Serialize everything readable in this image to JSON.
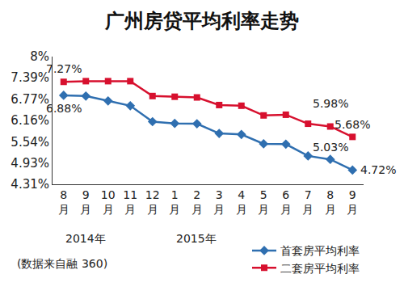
{
  "chart_data": {
    "type": "line",
    "title": "广州房贷平均利率走势",
    "categories": [
      "8月",
      "9月",
      "10月",
      "11月",
      "12月",
      "1月",
      "2月",
      "3月",
      "4月",
      "5月",
      "6月",
      "7月",
      "8月",
      "9月"
    ],
    "series": [
      {
        "name": "首套房平均利率",
        "color": "#2f6fb0",
        "marker": "diamond",
        "values": [
          6.88,
          6.86,
          6.72,
          6.58,
          6.12,
          6.07,
          6.06,
          5.78,
          5.75,
          5.48,
          5.47,
          5.13,
          5.03,
          4.72
        ],
        "value_labels": [
          "6.88%",
          null,
          null,
          null,
          null,
          null,
          null,
          null,
          null,
          null,
          null,
          null,
          "5.03%",
          "4.72%"
        ]
      },
      {
        "name": "二套房平均利率",
        "color": "#d7102e",
        "marker": "square",
        "values": [
          7.27,
          7.29,
          7.29,
          7.29,
          6.86,
          6.84,
          6.82,
          6.6,
          6.58,
          6.3,
          6.32,
          6.06,
          5.98,
          5.68
        ],
        "value_labels": [
          "7.27%",
          null,
          null,
          null,
          null,
          null,
          null,
          null,
          null,
          null,
          null,
          null,
          "5.98%",
          "5.68%"
        ]
      }
    ],
    "ylim": [
      4.31,
      8
    ],
    "yticks": [
      {
        "value": 4.31,
        "label": "4.31%"
      },
      {
        "value": 4.93,
        "label": "4.93%"
      },
      {
        "value": 5.54,
        "label": "5.54%"
      },
      {
        "value": 6.16,
        "label": "6.16%"
      },
      {
        "value": 6.77,
        "label": "6.77%"
      },
      {
        "value": 7.39,
        "label": "7.39%"
      },
      {
        "value": 8,
        "label": "8%"
      }
    ],
    "grid": false,
    "legend": "bottom right",
    "data_labels": true,
    "annotations": [
      {
        "x": 0,
        "text": "2014年"
      },
      {
        "x": 5,
        "text": "2015年"
      }
    ],
    "source": "(数据来自融 360)"
  }
}
